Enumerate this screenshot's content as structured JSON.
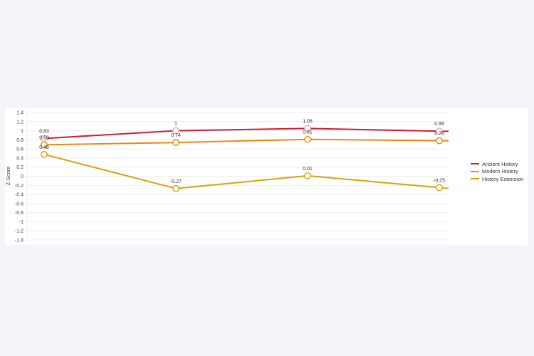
{
  "chart_data": {
    "type": "line",
    "title": "",
    "xlabel": "",
    "ylabel": "Z-Score",
    "ylim": [
      -1.4,
      1.4
    ],
    "yticks": [
      "1.4",
      "1.2",
      "1",
      "0.8",
      "0.6",
      "0.4",
      "0.2",
      "0",
      "-0.2",
      "-0.4",
      "-0.6",
      "-0.8",
      "-1",
      "-1.2",
      "-1.4"
    ],
    "categories": [
      "",
      "",
      "",
      ""
    ],
    "grid": true,
    "legend_position": "right",
    "series": [
      {
        "name": "Ancient History",
        "color": "#d21a3a",
        "values": [
          0.83,
          1,
          1.05,
          0.99
        ]
      },
      {
        "name": "Modern History",
        "color": "#f0860f",
        "values": [
          0.69,
          0.74,
          0.81,
          0.78
        ]
      },
      {
        "name": "History Extension",
        "color": "#dba20b",
        "values": [
          0.48,
          -0.27,
          0.01,
          -0.25
        ]
      }
    ]
  },
  "legend": {
    "items": [
      {
        "label": "Ancient History",
        "color": "#d21a3a"
      },
      {
        "label": "Modern History",
        "color": "#f0860f"
      },
      {
        "label": "History Extension",
        "color": "#dba20b"
      }
    ]
  }
}
